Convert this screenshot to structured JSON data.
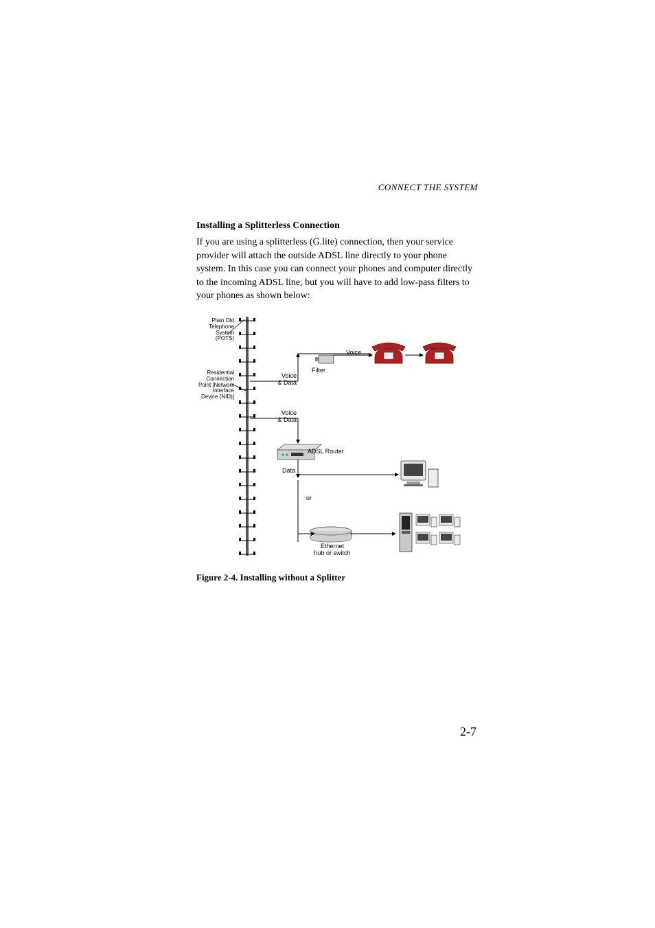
{
  "header": "CONNECT THE SYSTEM",
  "section_title": "Installing a Splitterless Connection",
  "body": "If you are using a splitterless (G.lite) connection, then your service provider will attach the outside ADSL line directly to your phone system. In this case you can connect your phones and computer directly to the incoming ADSL line, but you will have to add low-pass filters to your phones as shown below:",
  "figure": {
    "caption": "Figure 2-4.  Installing without a Splitter",
    "labels": {
      "pots": "Plain Old\nTelephone\nSystem (POTS)",
      "nid": "Residential\nConnection\nPoint [Network\nInterface\nDevice (NID)]",
      "voice_data_1": "Voice\n& Data",
      "voice_data_2": "Voice\n& Data",
      "voice": "Voice",
      "filter": "Filter",
      "adsl_router": "ADSL Router",
      "data": "Data",
      "or": "or",
      "hub": "Ethernet\nhub or switch"
    },
    "colors": {
      "phone": "#b02020",
      "pole": "#555555",
      "filter_body": "#d0d0d0",
      "router_body": "#cfcfcf",
      "monitor": "#e8e8e8",
      "pc_body": "#ececec",
      "hub_body": "#cfcfcf",
      "box_body": "#c9c9c9"
    }
  },
  "page_number": "2-7"
}
